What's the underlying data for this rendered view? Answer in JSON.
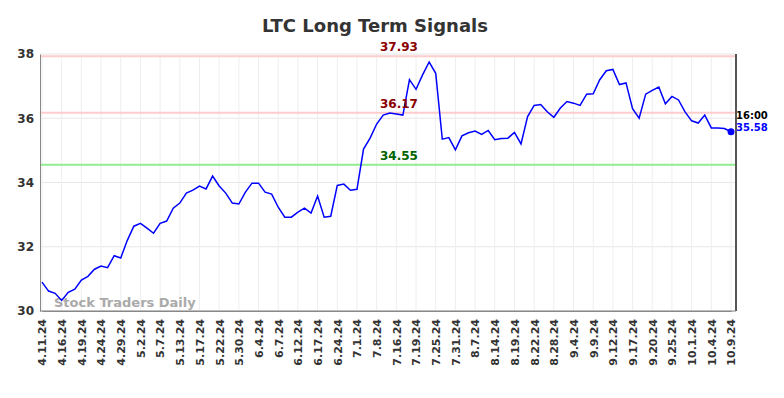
{
  "chart_data": {
    "type": "line",
    "title": "LTC Long Term Signals",
    "watermark": "Stock Traders Daily",
    "categories": [
      "4.11.24",
      null,
      null,
      "4.16.24",
      null,
      null,
      "4.19.24",
      null,
      null,
      "4.24.24",
      null,
      null,
      "4.29.24",
      null,
      null,
      "5.2.24",
      null,
      null,
      "5.7.24",
      null,
      null,
      "5.13.24",
      null,
      null,
      "5.17.24",
      null,
      null,
      "5.22.24",
      null,
      null,
      "5.30.24",
      null,
      null,
      "6.4.24",
      null,
      null,
      "6.7.24",
      null,
      null,
      "6.12.24",
      null,
      null,
      "6.17.24",
      null,
      null,
      "6.24.24",
      null,
      null,
      "7.1.24",
      null,
      null,
      "7.8.24",
      null,
      null,
      "7.16.24",
      null,
      null,
      "7.19.24",
      null,
      null,
      "7.25.24",
      null,
      null,
      "7.31.24",
      null,
      null,
      "8.7.24",
      null,
      null,
      "8.14.24",
      null,
      null,
      "8.19.24",
      null,
      null,
      "8.22.24",
      null,
      null,
      "8.28.24",
      null,
      null,
      "9.4.24",
      null,
      null,
      "9.9.24",
      null,
      null,
      "9.12.24",
      null,
      null,
      "9.17.24",
      null,
      null,
      "9.20.24",
      null,
      null,
      "9.25.24",
      null,
      null,
      "10.1.24",
      null,
      null,
      "10.4.24",
      null,
      null,
      "10.9.24"
    ],
    "series": [
      {
        "name": "LTC",
        "color": "#0000ff",
        "values": [
          30.9,
          30.62,
          30.55,
          30.33,
          30.58,
          30.68,
          30.96,
          31.08,
          31.3,
          31.4,
          31.35,
          31.72,
          31.65,
          32.2,
          32.64,
          32.73,
          32.58,
          32.42,
          32.73,
          32.8,
          33.2,
          33.36,
          33.67,
          33.76,
          33.89,
          33.8,
          34.2,
          33.89,
          33.67,
          33.36,
          33.33,
          33.7,
          33.98,
          33.98,
          33.7,
          33.64,
          33.23,
          32.92,
          32.92,
          33.08,
          33.2,
          33.05,
          33.58,
          32.92,
          32.95,
          33.91,
          33.95,
          33.76,
          33.79,
          35.04,
          35.38,
          35.82,
          36.1,
          36.16,
          36.13,
          36.1,
          37.2,
          36.9,
          37.35,
          37.75,
          37.4,
          35.35,
          35.4,
          35.02,
          35.45,
          35.55,
          35.6,
          35.5,
          35.62,
          35.33,
          35.37,
          35.38,
          35.56,
          35.2,
          36.05,
          36.4,
          36.43,
          36.2,
          36.03,
          36.32,
          36.52,
          36.47,
          36.4,
          36.75,
          36.76,
          37.2,
          37.48,
          37.52,
          37.05,
          37.1,
          36.3,
          36.0,
          36.75,
          36.87,
          36.97,
          36.45,
          36.68,
          36.57,
          36.2,
          35.92,
          35.85,
          36.1,
          35.7,
          35.7,
          35.68,
          35.58
        ]
      }
    ],
    "levels": [
      {
        "label": "37.93",
        "value": 37.93,
        "color": "#8b0000"
      },
      {
        "label": "36.17",
        "value": 36.17,
        "color": "#8b0000"
      },
      {
        "label": "34.55",
        "value": 34.55,
        "color": "#006400"
      }
    ],
    "last_label": {
      "time": "16:00",
      "value": 35.58
    },
    "ylim": [
      30,
      38
    ],
    "yticks": [
      30,
      32,
      34,
      36,
      38
    ],
    "grid": true
  }
}
